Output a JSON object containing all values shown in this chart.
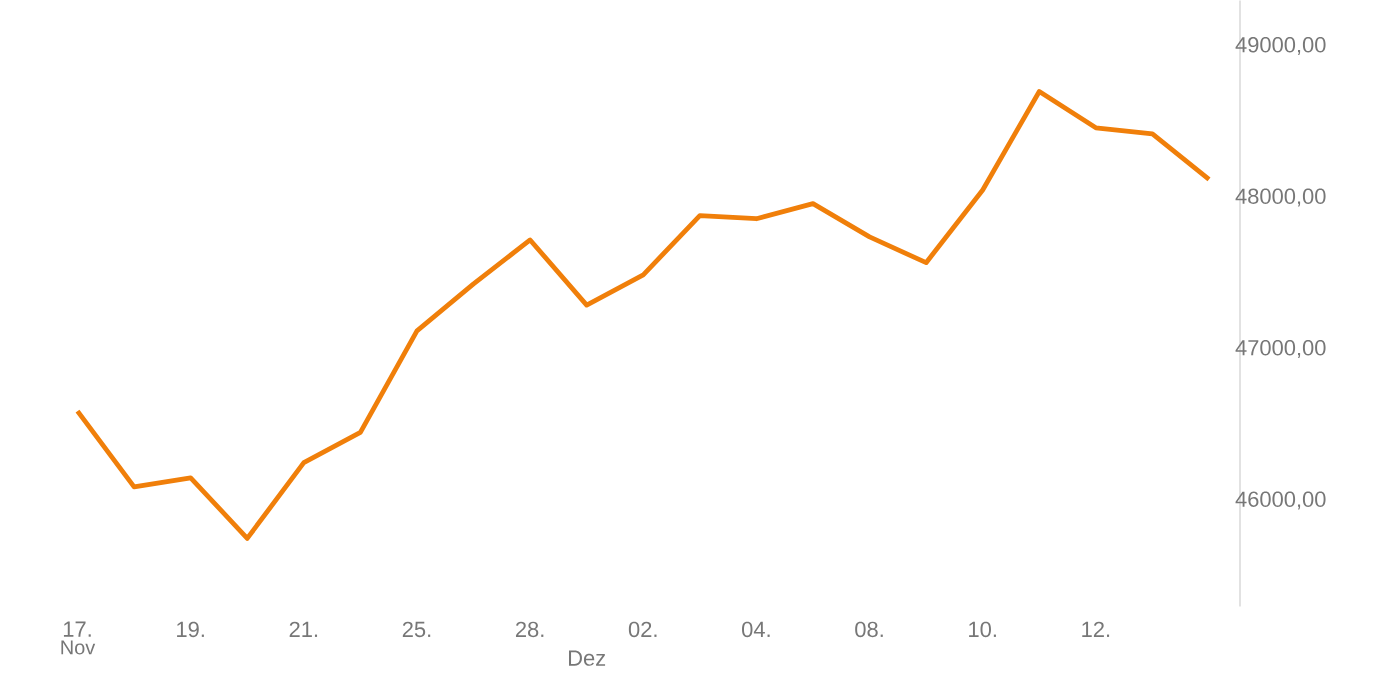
{
  "chart_data": {
    "type": "line",
    "categories": [
      "17.",
      null,
      "19.",
      null,
      "21.",
      null,
      "25.",
      null,
      "28.",
      "Dez",
      "02.",
      null,
      "04.",
      null,
      "08.",
      null,
      "10.",
      null,
      "12.",
      null,
      null
    ],
    "series": [
      {
        "color": "#f07f0a",
        "values": [
          46590,
          46090,
          46150,
          45750,
          46250,
          46450,
          47120,
          47430,
          47720,
          47290,
          47490,
          47880,
          47860,
          47960,
          47740,
          47570,
          48050,
          48700,
          48460,
          48420,
          48120
        ]
      }
    ],
    "ylim": [
      45300,
      49300
    ],
    "yticks": [
      {
        "value": 46000,
        "label": "46000,00"
      },
      {
        "value": 47000,
        "label": "47000,00"
      },
      {
        "value": 48000,
        "label": "48000,00"
      },
      {
        "value": 49000,
        "label": "49000,00"
      }
    ],
    "annotations": [
      "Nov"
    ]
  }
}
